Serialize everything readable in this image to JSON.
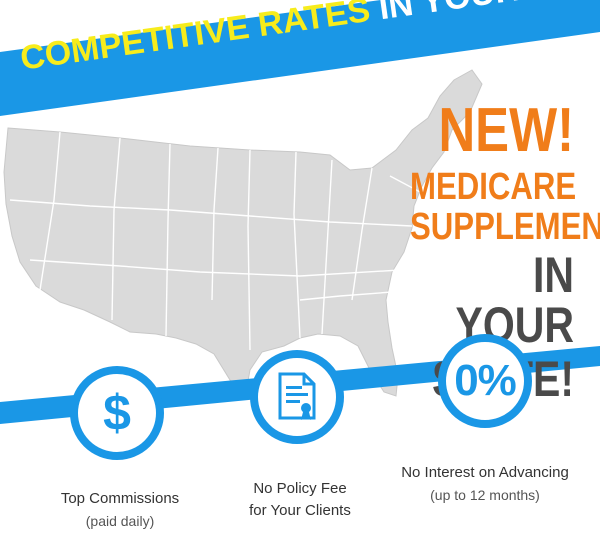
{
  "banner": {
    "highlight": "COMPETITIVE RATES",
    "rest": " IN YOUR STATE!"
  },
  "headline": {
    "line1": "NEW!",
    "line2": "MEDICARE",
    "line3": "SUPPLEMENT",
    "line4": "IN YOUR",
    "line5": "STATE!"
  },
  "features": [
    {
      "icon": "dollar-sign-icon",
      "symbol": "$",
      "title": "Top Commissions",
      "subtitle": "(paid daily)"
    },
    {
      "icon": "policy-document-icon",
      "title": "No Policy Fee",
      "subtitle": "for Your Clients"
    },
    {
      "icon": "zero-percent-icon",
      "symbol": "0%",
      "title": "No Interest on Advancing",
      "subtitle": "(up to 12 months)"
    }
  ],
  "colors": {
    "banner_blue": "#1a97e6",
    "banner_yellow": "#f7ec1c",
    "accent_orange": "#f07d1a",
    "dark_text": "#4a4a4a",
    "map_fill": "#dadada",
    "map_lines": "#ffffff"
  }
}
